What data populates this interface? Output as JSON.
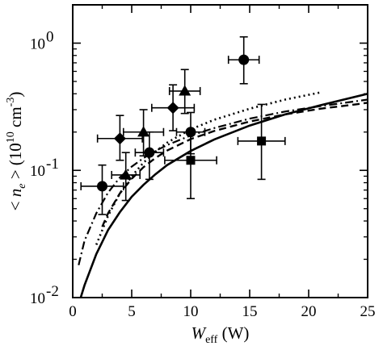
{
  "chart_data": {
    "type": "scatter",
    "title": "",
    "xlabel": {
      "main": "W",
      "sub": "eff",
      "unit": " (W)"
    },
    "ylabel": {
      "pre": "< ",
      "var": "n",
      "sub": "e",
      "post": " > (10",
      "exp": "10",
      "unit": " cm",
      "unit_exp": "-3",
      "close": ")"
    },
    "xlim": [
      0,
      25
    ],
    "ylim": [
      0.01,
      2.0
    ],
    "yscale": "log",
    "grid": false,
    "legend": "none",
    "x_ticks": [
      0,
      5,
      10,
      15,
      20,
      25
    ],
    "x_tick_labels": [
      "0",
      "5",
      "10",
      "15",
      "20",
      "25"
    ],
    "y_ticks": [
      0.01,
      0.1,
      1
    ],
    "y_tick_labels": [
      {
        "base": "10",
        "exp": "-2"
      },
      {
        "base": "10",
        "exp": "-1"
      },
      {
        "base": "10",
        "exp": "0"
      }
    ],
    "series": [
      {
        "marker": "circle",
        "points": [
          {
            "x": 14.5,
            "y": 0.74,
            "xerr": 1.3,
            "ylo": 0.48,
            "yhi": 1.12
          },
          {
            "x": 10.0,
            "y": 0.2,
            "xerr": 1.2,
            "ylo": 0.135,
            "yhi": 0.285
          },
          {
            "x": 6.5,
            "y": 0.138,
            "xerr": 1.2,
            "ylo": 0.085,
            "yhi": 0.2
          },
          {
            "x": 2.5,
            "y": 0.075,
            "xerr": 1.8,
            "ylo": 0.045,
            "yhi": 0.11
          }
        ]
      },
      {
        "marker": "diamond",
        "points": [
          {
            "x": 4.0,
            "y": 0.178,
            "xerr": 1.9,
            "ylo": 0.12,
            "yhi": 0.27
          },
          {
            "x": 8.5,
            "y": 0.31,
            "xerr": 1.8,
            "ylo": 0.205,
            "yhi": 0.47
          }
        ]
      },
      {
        "marker": "triangle",
        "points": [
          {
            "x": 9.5,
            "y": 0.42,
            "xerr": 1.3,
            "ylo": 0.28,
            "yhi": 0.62
          },
          {
            "x": 6.0,
            "y": 0.2,
            "xerr": 1.7,
            "ylo": 0.13,
            "yhi": 0.3
          },
          {
            "x": 4.5,
            "y": 0.092,
            "xerr": 1.2,
            "ylo": 0.058,
            "yhi": 0.138
          }
        ]
      },
      {
        "marker": "square",
        "points": [
          {
            "x": 10.0,
            "y": 0.12,
            "xerr": 2.2,
            "ylo": 0.06,
            "yhi": 0.19
          },
          {
            "x": 16.0,
            "y": 0.17,
            "xerr": 2.0,
            "ylo": 0.085,
            "yhi": 0.33
          }
        ]
      }
    ],
    "curves": [
      {
        "style": "solid",
        "points": [
          [
            0.6,
            0.0095
          ],
          [
            1,
            0.0125
          ],
          [
            2,
            0.022
          ],
          [
            3,
            0.034
          ],
          [
            4,
            0.047
          ],
          [
            5,
            0.062
          ],
          [
            6,
            0.077
          ],
          [
            7,
            0.093
          ],
          [
            8,
            0.11
          ],
          [
            10,
            0.142
          ],
          [
            12,
            0.175
          ],
          [
            15,
            0.225
          ],
          [
            18,
            0.275
          ],
          [
            21,
            0.325
          ],
          [
            25,
            0.4
          ]
        ]
      },
      {
        "style": "dashed",
        "points": [
          [
            2.5,
            0.036
          ],
          [
            3,
            0.046
          ],
          [
            4,
            0.066
          ],
          [
            5,
            0.086
          ],
          [
            6,
            0.106
          ],
          [
            7,
            0.125
          ],
          [
            8,
            0.143
          ],
          [
            10,
            0.176
          ],
          [
            12,
            0.204
          ],
          [
            15,
            0.242
          ],
          [
            18,
            0.275
          ],
          [
            21,
            0.305
          ],
          [
            24,
            0.33
          ],
          [
            25,
            0.34
          ]
        ]
      },
      {
        "style": "dotted",
        "points": [
          [
            2.0,
            0.026
          ],
          [
            3,
            0.044
          ],
          [
            4,
            0.066
          ],
          [
            5,
            0.09
          ],
          [
            6,
            0.115
          ],
          [
            7,
            0.14
          ],
          [
            8,
            0.165
          ],
          [
            10,
            0.21
          ],
          [
            12,
            0.25
          ],
          [
            15,
            0.305
          ],
          [
            18,
            0.36
          ],
          [
            21,
            0.41
          ]
        ]
      },
      {
        "style": "dashdot",
        "points": [
          [
            0.5,
            0.018
          ],
          [
            1,
            0.028
          ],
          [
            2,
            0.046
          ],
          [
            3,
            0.067
          ],
          [
            4,
            0.088
          ],
          [
            5,
            0.107
          ],
          [
            6,
            0.125
          ],
          [
            7,
            0.142
          ],
          [
            8,
            0.158
          ],
          [
            10,
            0.188
          ],
          [
            12,
            0.215
          ],
          [
            15,
            0.255
          ],
          [
            18,
            0.29
          ],
          [
            21,
            0.32
          ],
          [
            25,
            0.36
          ]
        ]
      }
    ]
  }
}
